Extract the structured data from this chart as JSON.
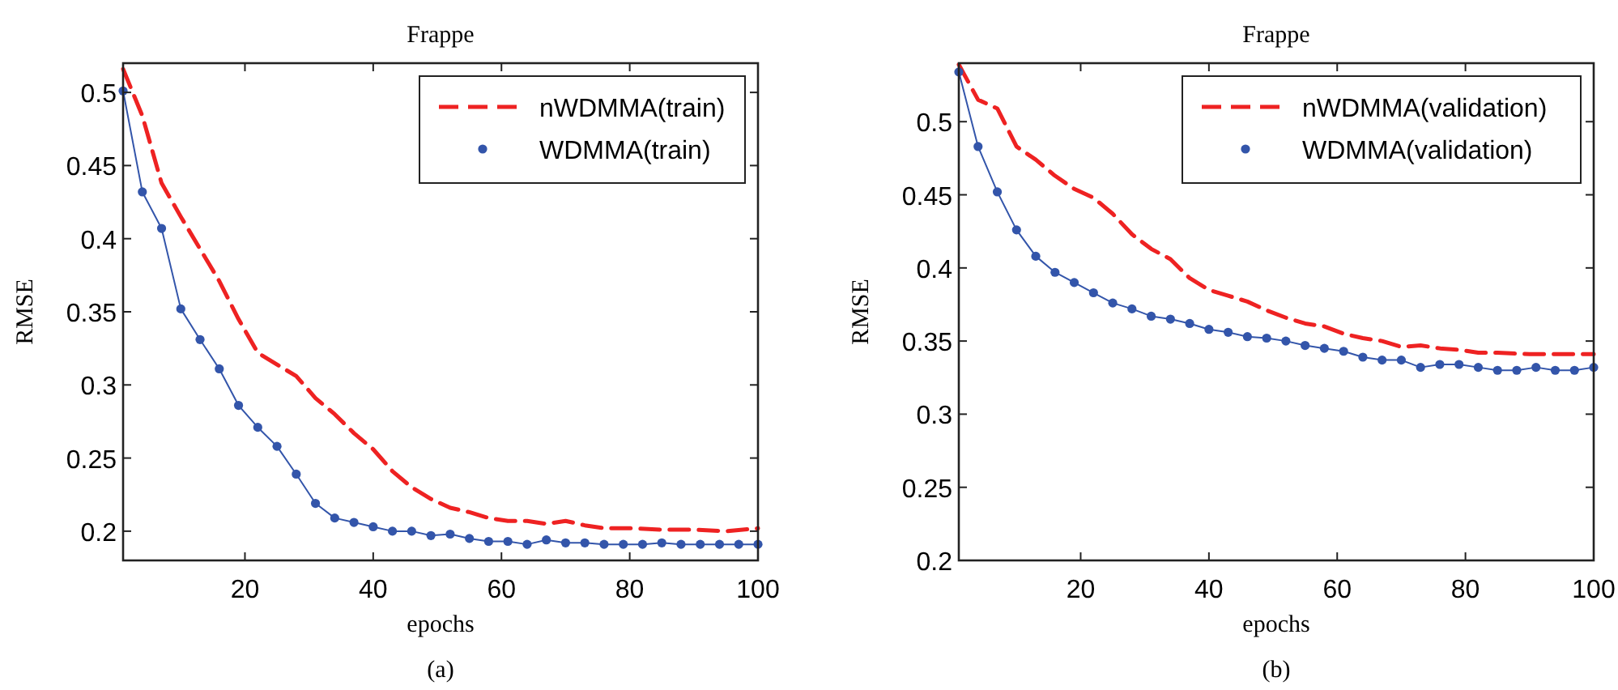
{
  "chart_data": [
    {
      "type": "line",
      "title": "Frappe",
      "xlabel": "epochs",
      "ylabel": "RMSE",
      "annotations": [
        "(a)"
      ],
      "xlim": [
        1,
        100
      ],
      "xticks": [
        20,
        40,
        60,
        80,
        100
      ],
      "ylim": [
        0.18,
        0.52
      ],
      "yticks": [
        0.2,
        0.25,
        0.3,
        0.35,
        0.4,
        0.45,
        0.5
      ],
      "grid": false,
      "legend": "top right",
      "series": [
        {
          "name": "nWDMMA(train)",
          "color": "#ee2222",
          "line_style": "dashed",
          "marker": "none",
          "x": [
            1,
            4,
            7,
            10,
            13,
            16,
            19,
            22,
            25,
            28,
            31,
            34,
            37,
            40,
            43,
            46,
            49,
            52,
            55,
            58,
            61,
            64,
            67,
            70,
            73,
            76,
            80,
            85,
            90,
            95,
            100
          ],
          "values": [
            0.516,
            0.484,
            0.438,
            0.415,
            0.393,
            0.371,
            0.345,
            0.322,
            0.314,
            0.306,
            0.291,
            0.28,
            0.267,
            0.256,
            0.241,
            0.23,
            0.222,
            0.216,
            0.213,
            0.209,
            0.207,
            0.207,
            0.205,
            0.207,
            0.204,
            0.202,
            0.202,
            0.201,
            0.201,
            0.2,
            0.202
          ]
        },
        {
          "name": "WDMMA(train)",
          "color": "#3355aa",
          "line_style": "solid",
          "marker": "circle",
          "x": [
            1,
            4,
            7,
            10,
            13,
            16,
            19,
            22,
            25,
            28,
            31,
            34,
            37,
            40,
            43,
            46,
            49,
            52,
            55,
            58,
            61,
            64,
            67,
            70,
            73,
            76,
            79,
            82,
            85,
            88,
            91,
            94,
            97,
            100
          ],
          "values": [
            0.501,
            0.432,
            0.407,
            0.352,
            0.331,
            0.311,
            0.286,
            0.271,
            0.258,
            0.239,
            0.219,
            0.209,
            0.206,
            0.203,
            0.2,
            0.2,
            0.197,
            0.198,
            0.195,
            0.193,
            0.193,
            0.191,
            0.194,
            0.192,
            0.192,
            0.191,
            0.191,
            0.191,
            0.192,
            0.191,
            0.191,
            0.191,
            0.191,
            0.191
          ]
        }
      ]
    },
    {
      "type": "line",
      "title": "Frappe",
      "xlabel": "epochs",
      "ylabel": "RMSE",
      "annotations": [
        "(b)"
      ],
      "xlim": [
        1,
        100
      ],
      "xticks": [
        20,
        40,
        60,
        80,
        100
      ],
      "ylim": [
        0.2,
        0.54
      ],
      "yticks": [
        0.2,
        0.25,
        0.3,
        0.35,
        0.4,
        0.45,
        0.5
      ],
      "grid": false,
      "legend": "top right",
      "series": [
        {
          "name": "nWDMMA(validation)",
          "color": "#ee2222",
          "line_style": "dashed",
          "marker": "none",
          "x": [
            1,
            4,
            7,
            10,
            13,
            16,
            19,
            22,
            25,
            28,
            31,
            34,
            37,
            40,
            43,
            46,
            49,
            52,
            55,
            58,
            61,
            64,
            67,
            70,
            73,
            76,
            79,
            82,
            85,
            90,
            95,
            100
          ],
          "values": [
            0.539,
            0.515,
            0.509,
            0.483,
            0.474,
            0.463,
            0.454,
            0.448,
            0.437,
            0.423,
            0.413,
            0.406,
            0.393,
            0.385,
            0.381,
            0.377,
            0.371,
            0.366,
            0.362,
            0.36,
            0.355,
            0.352,
            0.35,
            0.346,
            0.347,
            0.345,
            0.344,
            0.342,
            0.342,
            0.341,
            0.341,
            0.341
          ]
        },
        {
          "name": "WDMMA(validation)",
          "color": "#3355aa",
          "line_style": "solid",
          "marker": "circle",
          "x": [
            1,
            4,
            7,
            10,
            13,
            16,
            19,
            22,
            25,
            28,
            31,
            34,
            37,
            40,
            43,
            46,
            49,
            52,
            55,
            58,
            61,
            64,
            67,
            70,
            73,
            76,
            79,
            82,
            85,
            88,
            91,
            94,
            97,
            100
          ],
          "values": [
            0.534,
            0.483,
            0.452,
            0.426,
            0.408,
            0.397,
            0.39,
            0.383,
            0.376,
            0.372,
            0.367,
            0.365,
            0.362,
            0.358,
            0.356,
            0.353,
            0.352,
            0.35,
            0.347,
            0.345,
            0.343,
            0.339,
            0.337,
            0.337,
            0.332,
            0.334,
            0.334,
            0.332,
            0.33,
            0.33,
            0.332,
            0.33,
            0.33,
            0.332
          ]
        }
      ]
    }
  ]
}
